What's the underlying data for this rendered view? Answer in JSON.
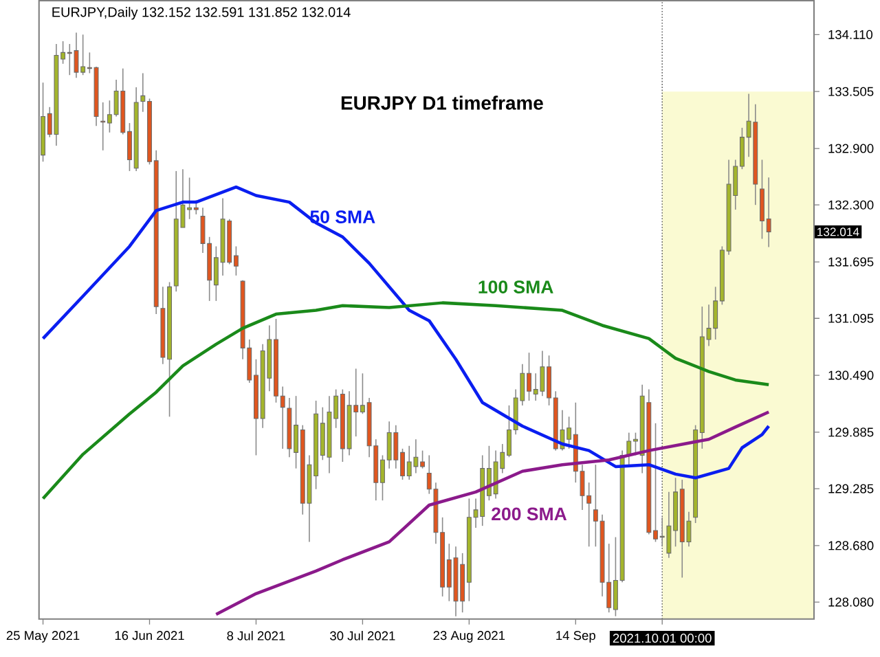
{
  "chart_data": {
    "type": "candlestick",
    "title": "EURJPY D1 timeframe",
    "subtitle": "EURJPY,Daily 132.152 132.591 131.852 132.014",
    "categories": [
      "25 May 2021",
      null,
      null,
      null,
      null,
      null,
      null,
      null,
      null,
      null,
      null,
      null,
      null,
      null,
      null,
      null,
      "16 Jun 2021",
      null,
      null,
      null,
      null,
      null,
      null,
      null,
      null,
      null,
      null,
      null,
      null,
      null,
      null,
      null,
      "8 Jul 2021",
      null,
      null,
      null,
      null,
      null,
      null,
      null,
      null,
      null,
      null,
      null,
      null,
      null,
      null,
      null,
      "30 Jul 2021",
      null,
      null,
      null,
      null,
      null,
      null,
      null,
      null,
      null,
      null,
      null,
      null,
      null,
      null,
      null,
      "23 Aug 2021",
      null,
      null,
      null,
      null,
      null,
      null,
      null,
      null,
      null,
      null,
      null,
      null,
      null,
      null,
      null,
      "14 Sep",
      null,
      null,
      null,
      null,
      null,
      null,
      null,
      null,
      null,
      null,
      null,
      null,
      "2021.10.01 00:00",
      null,
      null,
      null,
      null,
      null,
      null,
      null,
      null,
      null,
      null,
      null,
      null,
      null,
      null,
      null,
      null
    ],
    "ohlc": [
      [
        132.83,
        133.6,
        132.76,
        133.24
      ],
      [
        133.27,
        133.34,
        133.02,
        133.05
      ],
      [
        133.05,
        134.01,
        132.93,
        133.89
      ],
      [
        133.85,
        134.04,
        133.8,
        133.92
      ],
      [
        133.92,
        134.01,
        133.68,
        133.91
      ],
      [
        133.94,
        134.13,
        133.65,
        133.71
      ],
      [
        133.71,
        134.11,
        133.68,
        133.77
      ],
      [
        133.76,
        133.92,
        133.7,
        133.75
      ],
      [
        133.76,
        133.77,
        133.14,
        133.24
      ],
      [
        133.19,
        133.39,
        132.88,
        133.18
      ],
      [
        133.17,
        133.41,
        133.07,
        133.26
      ],
      [
        133.26,
        133.63,
        133.24,
        133.51
      ],
      [
        133.51,
        133.75,
        133.05,
        133.07
      ],
      [
        133.08,
        133.17,
        132.66,
        132.78
      ],
      [
        132.69,
        133.55,
        132.66,
        133.39
      ],
      [
        133.4,
        133.7,
        133.29,
        133.46
      ],
      [
        133.4,
        133.43,
        132.73,
        132.76
      ],
      [
        132.77,
        132.88,
        131.14,
        131.22
      ],
      [
        131.2,
        131.43,
        130.61,
        130.68
      ],
      [
        130.66,
        131.48,
        130.05,
        131.43
      ],
      [
        131.44,
        132.66,
        131.38,
        132.15
      ],
      [
        132.06,
        132.68,
        132.06,
        132.3
      ],
      [
        132.25,
        132.59,
        132.15,
        132.27
      ],
      [
        132.27,
        132.35,
        132.2,
        132.25
      ],
      [
        132.18,
        132.27,
        131.79,
        131.89
      ],
      [
        131.89,
        131.96,
        131.28,
        131.5
      ],
      [
        131.45,
        131.86,
        131.28,
        131.74
      ],
      [
        131.69,
        132.37,
        131.55,
        132.15
      ],
      [
        132.13,
        132.15,
        131.67,
        131.69
      ],
      [
        131.76,
        131.86,
        131.55,
        131.65
      ],
      [
        131.49,
        131.5,
        130.66,
        130.78
      ],
      [
        130.78,
        130.87,
        130.41,
        130.44
      ],
      [
        130.49,
        130.66,
        129.64,
        130.03
      ],
      [
        130.03,
        130.82,
        129.93,
        130.75
      ],
      [
        130.46,
        131.02,
        130.32,
        130.87
      ],
      [
        130.87,
        131.09,
        130.2,
        130.27
      ],
      [
        130.27,
        130.37,
        129.71,
        130.15
      ],
      [
        130.14,
        130.25,
        129.62,
        129.71
      ],
      [
        129.67,
        130.27,
        129.5,
        129.96
      ],
      [
        129.91,
        129.96,
        129.01,
        129.13
      ],
      [
        129.13,
        129.64,
        128.72,
        129.54
      ],
      [
        129.42,
        130.22,
        129.28,
        130.08
      ],
      [
        129.64,
        130.15,
        129.59,
        129.98
      ],
      [
        129.62,
        130.27,
        129.45,
        130.1
      ],
      [
        130.03,
        130.34,
        129.93,
        130.27
      ],
      [
        130.29,
        130.34,
        129.57,
        129.71
      ],
      [
        129.71,
        130.32,
        129.64,
        130.17
      ],
      [
        130.17,
        130.56,
        129.84,
        130.1
      ],
      [
        130.1,
        130.51,
        130.08,
        130.17
      ],
      [
        130.2,
        130.25,
        129.62,
        129.74
      ],
      [
        129.74,
        129.81,
        129.16,
        129.35
      ],
      [
        129.35,
        129.64,
        129.16,
        129.59
      ],
      [
        129.59,
        130.0,
        129.5,
        129.88
      ],
      [
        129.88,
        129.96,
        129.5,
        129.59
      ],
      [
        129.67,
        129.71,
        129.38,
        129.42
      ],
      [
        129.42,
        129.74,
        129.38,
        129.57
      ],
      [
        129.52,
        129.81,
        129.45,
        129.62
      ],
      [
        129.57,
        129.69,
        129.5,
        129.52
      ],
      [
        129.45,
        129.64,
        129.23,
        129.28
      ],
      [
        129.28,
        129.35,
        128.7,
        128.82
      ],
      [
        128.82,
        128.98,
        128.14,
        128.24
      ],
      [
        128.53,
        128.7,
        128.09,
        128.24
      ],
      [
        128.55,
        128.67,
        127.93,
        128.09
      ],
      [
        128.48,
        128.6,
        127.97,
        128.09
      ],
      [
        128.29,
        129.18,
        128.09,
        128.98
      ],
      [
        128.98,
        129.18,
        128.87,
        129.06
      ],
      [
        128.99,
        129.64,
        128.89,
        129.5
      ],
      [
        129.21,
        129.74,
        129.16,
        129.5
      ],
      [
        129.23,
        129.69,
        129.18,
        129.57
      ],
      [
        129.5,
        129.76,
        129.45,
        129.67
      ],
      [
        129.64,
        130.17,
        129.62,
        129.91
      ],
      [
        129.91,
        130.34,
        129.86,
        130.25
      ],
      [
        130.22,
        130.61,
        130.17,
        130.51
      ],
      [
        130.51,
        130.73,
        130.22,
        130.32
      ],
      [
        130.29,
        130.51,
        130.22,
        130.34
      ],
      [
        130.32,
        130.75,
        130.27,
        130.58
      ],
      [
        130.58,
        130.7,
        130.17,
        130.25
      ],
      [
        130.25,
        130.32,
        129.69,
        129.71
      ],
      [
        129.71,
        130.12,
        129.69,
        129.91
      ],
      [
        129.81,
        130.05,
        129.71,
        129.93
      ],
      [
        129.86,
        130.2,
        129.35,
        129.47
      ],
      [
        129.47,
        129.54,
        129.06,
        129.21
      ],
      [
        129.21,
        129.35,
        128.67,
        129.13
      ],
      [
        129.06,
        129.54,
        128.67,
        128.94
      ],
      [
        128.94,
        129.01,
        128.14,
        128.29
      ],
      [
        128.29,
        128.7,
        127.97,
        128.02
      ],
      [
        128.0,
        128.77,
        127.93,
        128.31
      ],
      [
        128.31,
        129.69,
        128.29,
        129.64
      ],
      [
        129.64,
        129.88,
        129.54,
        129.79
      ],
      [
        129.79,
        129.88,
        129.64,
        129.81
      ],
      [
        129.64,
        130.39,
        129.45,
        130.27
      ],
      [
        130.2,
        130.34,
        128.8,
        128.82
      ],
      [
        128.84,
        129.98,
        128.72,
        128.75
      ],
      [
        128.77,
        128.98,
        128.67,
        128.78
      ],
      [
        128.6,
        129.25,
        128.55,
        128.89
      ],
      [
        128.84,
        129.4,
        128.67,
        129.25
      ],
      [
        129.28,
        129.38,
        128.34,
        128.72
      ],
      [
        128.72,
        129.04,
        128.67,
        128.94
      ],
      [
        128.98,
        129.96,
        128.92,
        129.91
      ],
      [
        129.88,
        131.22,
        129.71,
        130.9
      ],
      [
        130.87,
        131.24,
        130.8,
        130.99
      ],
      [
        130.99,
        131.43,
        130.87,
        131.28
      ],
      [
        131.28,
        131.86,
        131.24,
        131.82
      ],
      [
        131.81,
        132.78,
        131.77,
        132.52
      ],
      [
        132.4,
        132.78,
        132.25,
        132.71
      ],
      [
        132.71,
        133.12,
        132.68,
        133.02
      ],
      [
        133.02,
        133.48,
        132.81,
        133.19
      ],
      [
        133.18,
        133.37,
        132.3,
        132.52
      ],
      [
        132.47,
        132.78,
        131.94,
        132.13
      ],
      [
        132.152,
        132.591,
        131.852,
        132.014
      ]
    ],
    "colors": [
      "#a4b52c",
      "#e0561f",
      "#a4b52c",
      "#a4b52c",
      "#e0561f",
      "#e0561f",
      "#a4b52c",
      "#e0561f",
      "#e0561f",
      "#e0561f",
      "#a4b52c",
      "#a4b52c",
      "#e0561f",
      "#e0561f",
      "#a4b52c",
      "#a4b52c",
      "#e0561f",
      "#e0561f",
      "#e0561f",
      "#a4b52c",
      "#a4b52c",
      "#a4b52c",
      "#a4b52c",
      "#e0561f",
      "#e0561f",
      "#e0561f",
      "#a4b52c",
      "#a4b52c",
      "#e0561f",
      "#e0561f",
      "#e0561f",
      "#e0561f",
      "#e0561f",
      "#a4b52c",
      "#a4b52c",
      "#e0561f",
      "#e0561f",
      "#e0561f",
      "#a4b52c",
      "#e0561f",
      "#a4b52c",
      "#a4b52c",
      "#a4b52c",
      "#a4b52c",
      "#a4b52c",
      "#e0561f",
      "#a4b52c",
      "#e0561f",
      "#a4b52c",
      "#e0561f",
      "#e0561f",
      "#a4b52c",
      "#a4b52c",
      "#e0561f",
      "#e0561f",
      "#a4b52c",
      "#a4b52c",
      "#e0561f",
      "#e0561f",
      "#e0561f",
      "#e0561f",
      "#e0561f",
      "#e0561f",
      "#e0561f",
      "#a4b52c",
      "#a4b52c",
      "#a4b52c",
      "#a4b52c",
      "#a4b52c",
      "#a4b52c",
      "#a4b52c",
      "#a4b52c",
      "#a4b52c",
      "#e0561f",
      "#a4b52c",
      "#a4b52c",
      "#e0561f",
      "#e0561f",
      "#a4b52c",
      "#a4b52c",
      "#e0561f",
      "#e0561f",
      "#e0561f",
      "#e0561f",
      "#e0561f",
      "#e0561f",
      "#a4b52c",
      "#a4b52c",
      "#a4b52c",
      "#a4b52c",
      "#a4b52c",
      "#e0561f",
      "#e0561f",
      "#a4b52c",
      "#a4b52c",
      "#a4b52c",
      "#e0561f",
      "#a4b52c",
      "#a4b52c",
      "#a4b52c",
      "#a4b52c",
      "#a4b52c",
      "#a4b52c",
      "#a4b52c",
      "#a4b52c",
      "#a4b52c",
      "#a4b52c",
      "#e0561f",
      "#e0561f",
      "#e0561f"
    ],
    "series": [
      {
        "type": "line",
        "name": "50 SMA",
        "color": "#0a1ef0",
        "values": [
          130.88,
          null,
          null,
          null,
          null,
          null,
          131.33,
          null,
          null,
          null,
          null,
          null,
          null,
          131.86,
          null,
          null,
          null,
          132.24,
          null,
          null,
          null,
          132.33,
          null,
          132.33,
          null,
          null,
          null,
          null,
          null,
          132.49,
          null,
          null,
          132.4,
          null,
          null,
          null,
          null,
          132.33,
          null,
          null,
          null,
          132.11,
          null,
          null,
          null,
          131.96,
          null,
          null,
          null,
          131.68,
          null,
          null,
          null,
          null,
          null,
          131.18,
          null,
          null,
          131.07,
          null,
          null,
          null,
          130.66,
          null,
          null,
          null,
          130.2,
          null,
          null,
          null,
          null,
          null,
          129.95,
          null,
          null,
          null,
          null,
          null,
          129.76,
          null,
          null,
          null,
          129.69,
          null,
          null,
          null,
          129.52,
          null,
          null,
          null,
          null,
          129.54,
          null,
          null,
          null,
          129.44,
          null,
          null,
          129.4,
          null,
          null,
          null,
          null,
          129.5,
          null,
          129.72,
          null,
          null,
          129.86,
          129.95
        ]
      },
      {
        "type": "line",
        "name": "100 SMA",
        "color": "#1a8a1a",
        "values": [
          129.18,
          null,
          null,
          null,
          null,
          null,
          129.65,
          null,
          null,
          null,
          null,
          null,
          null,
          130.08,
          null,
          null,
          null,
          130.31,
          null,
          null,
          null,
          130.59,
          null,
          null,
          null,
          null,
          130.82,
          null,
          null,
          null,
          130.99,
          null,
          null,
          null,
          null,
          131.14,
          null,
          null,
          null,
          null,
          null,
          131.18,
          null,
          null,
          null,
          131.23,
          null,
          null,
          null,
          null,
          null,
          null,
          131.21,
          null,
          null,
          null,
          null,
          null,
          null,
          null,
          131.26,
          null,
          null,
          null,
          null,
          null,
          null,
          null,
          131.23,
          null,
          null,
          null,
          null,
          null,
          null,
          null,
          null,
          null,
          131.18,
          null,
          null,
          null,
          null,
          null,
          131.02,
          null,
          null,
          null,
          null,
          null,
          null,
          130.88,
          null,
          null,
          null,
          130.67,
          null,
          null,
          null,
          null,
          130.53,
          null,
          null,
          null,
          130.44,
          null,
          null,
          null,
          null,
          130.39
        ]
      },
      {
        "type": "line",
        "name": "200 SMA",
        "color": "#8b1a8b",
        "values": [
          null,
          null,
          null,
          null,
          null,
          null,
          null,
          null,
          null,
          null,
          null,
          null,
          null,
          null,
          null,
          null,
          null,
          null,
          null,
          null,
          null,
          null,
          null,
          null,
          null,
          null,
          127.95,
          null,
          null,
          null,
          null,
          null,
          128.17,
          null,
          null,
          null,
          null,
          null,
          null,
          null,
          null,
          128.41,
          null,
          null,
          null,
          128.53,
          null,
          null,
          null,
          null,
          null,
          null,
          128.72,
          null,
          null,
          null,
          null,
          null,
          129.11,
          null,
          null,
          null,
          null,
          null,
          null,
          129.25,
          null,
          null,
          null,
          null,
          null,
          null,
          129.47,
          null,
          null,
          null,
          null,
          null,
          129.54,
          null,
          null,
          null,
          null,
          null,
          null,
          129.59,
          null,
          null,
          null,
          null,
          null,
          129.69,
          null,
          null,
          null,
          null,
          null,
          null,
          null,
          null,
          129.81,
          null,
          null,
          null,
          129.94,
          null,
          null,
          null,
          null,
          130.1
        ]
      }
    ],
    "ylim": [
      127.9,
      134.47
    ],
    "yticks": [
      {
        "value": 128.08,
        "label": "128.080"
      },
      {
        "value": 128.68,
        "label": "128.680"
      },
      {
        "value": 129.285,
        "label": "129.285"
      },
      {
        "value": 129.885,
        "label": "129.885"
      },
      {
        "value": 130.49,
        "label": "130.490"
      },
      {
        "value": 131.095,
        "label": "131.095"
      },
      {
        "value": 131.695,
        "label": "131.695"
      },
      {
        "value": 132.3,
        "label": "132.300"
      },
      {
        "value": 132.9,
        "label": "132.900"
      },
      {
        "value": 133.505,
        "label": "133.505"
      },
      {
        "value": 134.11,
        "label": "134.110"
      }
    ],
    "ref_lines": [
      {
        "axis": "x",
        "value": "2021.10.01 00:00",
        "color": "#606060",
        "line_style": "dotted"
      }
    ],
    "bands": [
      {
        "axis": "y",
        "from": 127.9,
        "to": 133.505,
        "color": "#fafad2"
      }
    ],
    "annotations": [
      "132.014"
    ]
  }
}
